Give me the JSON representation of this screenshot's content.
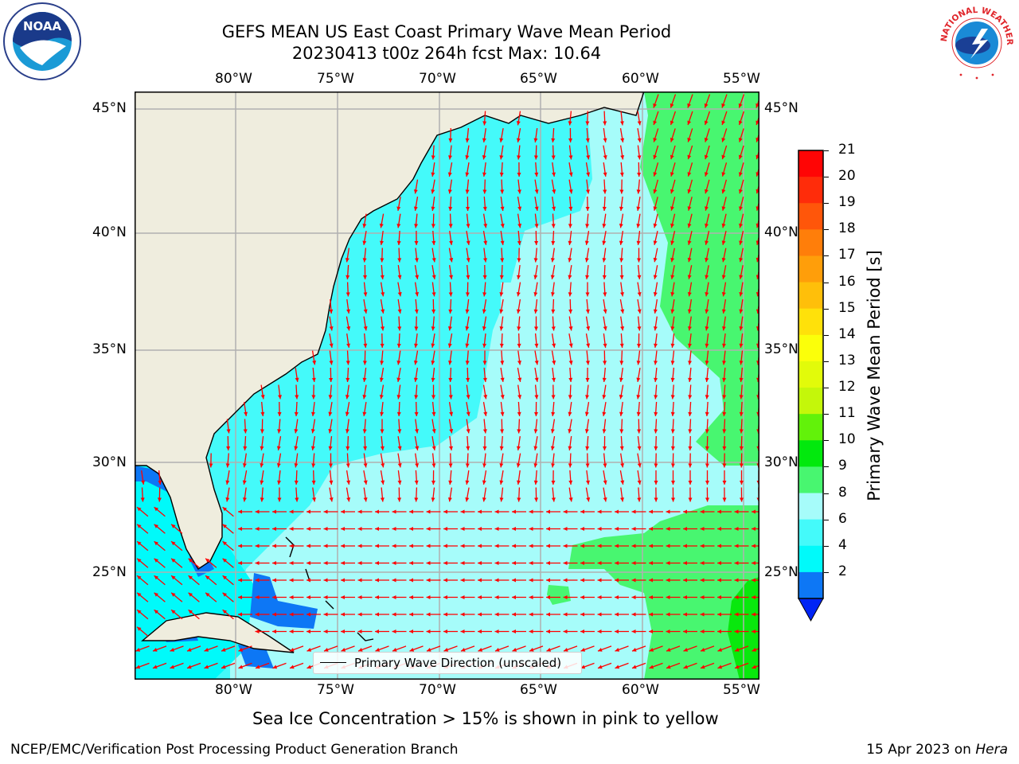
{
  "header": {
    "title_line1": "GEFS MEAN US East Coast Primary Wave Mean Period",
    "title_line2": "20230413 t00z 264h fcst   Max: 10.64"
  },
  "logos": {
    "noaa_text": "NOAA",
    "nws_text": "NATIONAL WEATHER SERVICE"
  },
  "map": {
    "lon_labels": [
      "80°W",
      "75°W",
      "70°W",
      "65°W",
      "60°W",
      "55°W"
    ],
    "lat_labels": [
      "45°N",
      "40°N",
      "35°N",
      "30°N",
      "25°N"
    ],
    "colors": {
      "land": "#efedde",
      "ocean_light": "#a6fcfa",
      "ocean_cyan": "#44fafa",
      "ocean_deep": "#00fafa",
      "green": "#48f670",
      "green_dark": "#09e80d",
      "blue": "#0d77f5",
      "arrow": "#ff0000",
      "grid": "#b0b0b0"
    }
  },
  "legend": {
    "label": "Primary Wave Direction (unscaled)"
  },
  "colorbar": {
    "title": "Primary Wave Mean Period [s]",
    "ticks": [
      "21",
      "20",
      "19",
      "18",
      "17",
      "16",
      "15",
      "14",
      "13",
      "12",
      "11",
      "10",
      "9",
      "8",
      "6",
      "4",
      "2"
    ],
    "colors": [
      "#ff0505",
      "#ff2c0a",
      "#ff560a",
      "#ff7e0a",
      "#ff9e0a",
      "#ffbf0a",
      "#ffe10a",
      "#fbff0a",
      "#e2fb0a",
      "#c4f70a",
      "#62f20a",
      "#02e90d",
      "#48f670",
      "#a6fcfa",
      "#44fafa",
      "#00fafa",
      "#0d77f5"
    ],
    "extend_color": "#0024f5"
  },
  "notes": {
    "sea_ice": "Sea Ice Concentration > 15% is shown in pink to yellow",
    "footer_left": "NCEP/EMC/Verification Post Processing Product Generation Branch",
    "footer_date": "15 Apr 2023 on ",
    "footer_machine": "Hera"
  }
}
